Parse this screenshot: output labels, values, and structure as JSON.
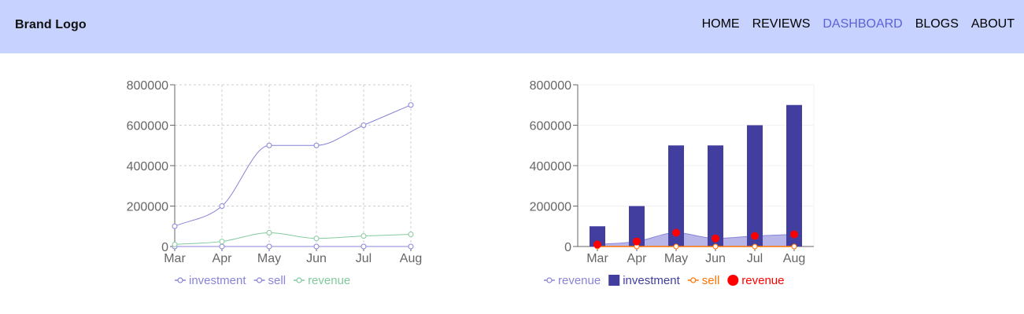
{
  "navbar": {
    "brand": "Brand Logo",
    "links": [
      "HOME",
      "REVIEWS",
      "DASHBOARD",
      "BLOGS",
      "ABOUT"
    ],
    "active": "DASHBOARD",
    "colors": {
      "background": "#c7d2fe",
      "active": "#5b63d6"
    }
  },
  "chart_data": [
    {
      "type": "line",
      "categories": [
        "Mar",
        "Apr",
        "May",
        "Jun",
        "Jul",
        "Aug"
      ],
      "ylim": [
        0,
        800000
      ],
      "yticks": [
        0,
        200000,
        400000,
        600000,
        800000
      ],
      "grid": true,
      "legend_position": "bottom",
      "series": [
        {
          "name": "investment",
          "color": "#8884d8",
          "values": [
            100000,
            200000,
            500000,
            500000,
            600000,
            700000
          ]
        },
        {
          "name": "sell",
          "color": "#8884d8",
          "values": [
            0,
            0,
            0,
            0,
            0,
            0
          ]
        },
        {
          "name": "revenue",
          "color": "#82ca9d",
          "values": [
            10000,
            25000,
            68000,
            40000,
            52000,
            60000
          ]
        }
      ],
      "legend": [
        "investment",
        "sell",
        "revenue"
      ]
    },
    {
      "type": "bar",
      "categories": [
        "Mar",
        "Apr",
        "May",
        "Jun",
        "Jul",
        "Aug"
      ],
      "ylim": [
        0,
        800000
      ],
      "yticks": [
        0,
        200000,
        400000,
        600000,
        800000
      ],
      "grid": true,
      "legend_position": "bottom",
      "series": [
        {
          "name": "revenue",
          "kind": "area",
          "color": "#8884d8",
          "values": [
            10000,
            25000,
            68000,
            40000,
            52000,
            60000
          ]
        },
        {
          "name": "investment",
          "kind": "bar",
          "color": "#413ea0",
          "values": [
            100000,
            200000,
            500000,
            500000,
            600000,
            700000
          ]
        },
        {
          "name": "sell",
          "kind": "line",
          "color": "#ff7300",
          "values": [
            0,
            0,
            0,
            0,
            0,
            0
          ]
        },
        {
          "name": "revenue",
          "kind": "scatter",
          "color": "#ff0000",
          "values": [
            10000,
            25000,
            68000,
            40000,
            52000,
            60000
          ]
        }
      ],
      "legend": [
        "revenue",
        "investment",
        "sell",
        "revenue"
      ]
    }
  ]
}
